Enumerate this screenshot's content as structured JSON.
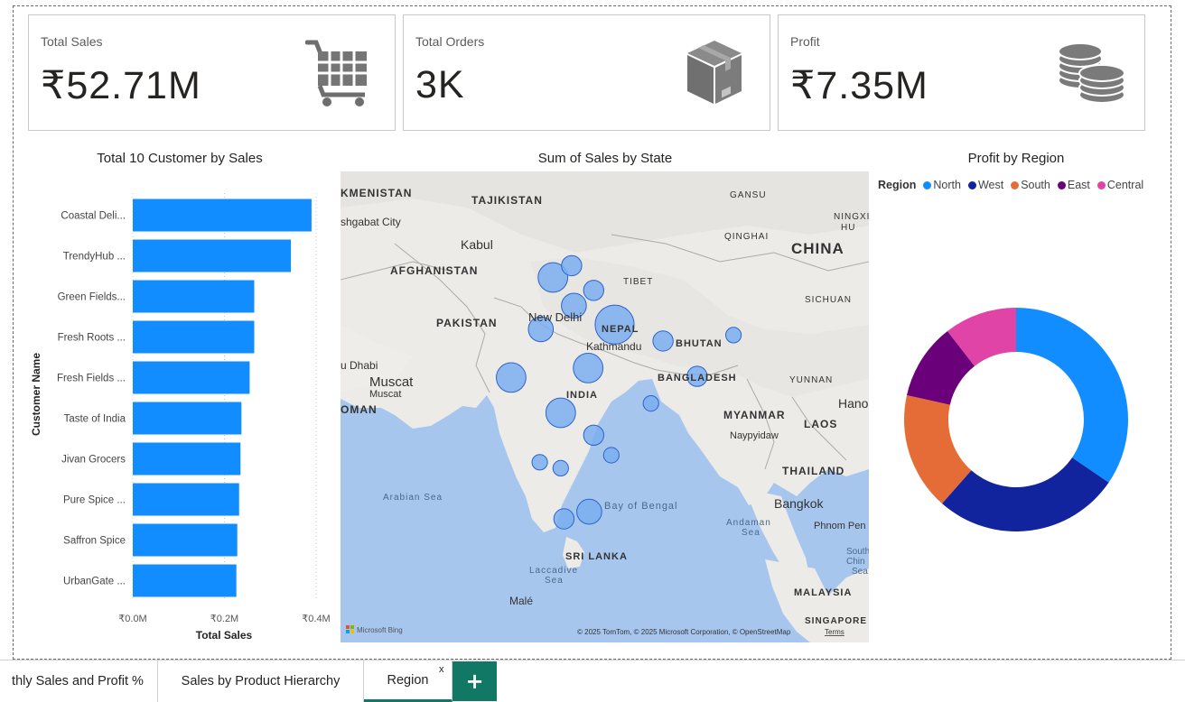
{
  "kpis": [
    {
      "label": "Total Sales",
      "value": "₹52.71M",
      "icon": "shopping-cart-icon"
    },
    {
      "label": "Total Orders",
      "value": "3K",
      "icon": "package-box-icon"
    },
    {
      "label": "Profit",
      "value": "₹7.35M",
      "icon": "coins-stack-icon"
    }
  ],
  "bar_chart": {
    "title": "Total 10 Customer by Sales",
    "ylabel": "Customer Name",
    "xlabel": "Total Sales",
    "x_ticks": [
      "₹0.0M",
      "₹0.2M",
      "₹0.4M"
    ]
  },
  "map": {
    "title": "Sum of Sales by State",
    "labels": {
      "turkmenistan": "KMENISTAN",
      "tajikistan": "TAJIKISTAN",
      "ashgabat": "shgabat City",
      "kabul": "Kabul",
      "afghanistan": "AFGHANISTAN",
      "pakistan": "PAKISTAN",
      "newdelhi": "New Delhi",
      "nepal": "NEPAL",
      "kathmandu": "Kathmandu",
      "bhutan": "BHUTAN",
      "bangladesh": "BANGLADESH",
      "india": "INDIA",
      "abudhabi": "u Dhabi",
      "muscat": "Muscat",
      "muscat2": "Muscat",
      "oman": "OMAN",
      "china": "CHINA",
      "gansu": "GANSU",
      "qinghai": "QINGHAI",
      "tibet": "TIBET",
      "sichuan": "SICHUAN",
      "ningxia": "NINGXI",
      "ningxia2": "HU",
      "yunnan": "YUNNAN",
      "myanmar": "MYANMAR",
      "naypyidaw": "Naypyidaw",
      "laos": "LAOS",
      "hanoi": "Hano",
      "thailand": "THAILAND",
      "bangkok": "Bangkok",
      "phnompenh": "Phnom Pen",
      "arabiansea": "Arabian Sea",
      "bayofbengal": "Bay of Bengal",
      "andamansea": "Andaman",
      "andamansea2": "Sea",
      "srilanka": "SRI LANKA",
      "laccadive": "Laccadive",
      "laccadive2": "Sea",
      "male": "Malé",
      "southchina": "South",
      "southchina2": "Chin",
      "southchina3": "Sea",
      "malaysia": "MALAYSIA",
      "singapore": "SINGAPORE",
      "bing": "Microsoft Bing",
      "copyright": "© 2025 TomTom, © 2025 Microsoft Corporation, © OpenStreetMap",
      "terms": "Terms"
    }
  },
  "donut": {
    "title": "Profit by Region",
    "legend_title": "Region"
  },
  "tabs": [
    {
      "label": "thly Sales and Profit %"
    },
    {
      "label": "Sales by Product Hierarchy"
    },
    {
      "label": "Region"
    }
  ],
  "close_tab": "x",
  "add_tab": "+",
  "chart_data": [
    {
      "type": "bar",
      "orientation": "horizontal",
      "title": "Total 10 Customer by Sales",
      "xlabel": "Total Sales",
      "ylabel": "Customer Name",
      "categories": [
        "Coastal Deli...",
        "TrendyHub ...",
        "Green Fields...",
        "Fresh Roots ...",
        "Fresh Fields ...",
        "Taste of India",
        "Jivan Grocers",
        "Pure Spice ...",
        "Saffron Spice",
        "UrbanGate ..."
      ],
      "values": [
        0.39,
        0.345,
        0.265,
        0.265,
        0.255,
        0.237,
        0.235,
        0.232,
        0.228,
        0.226
      ],
      "unit": "₹M",
      "xlim": [
        0,
        0.4
      ],
      "color": "#118DFF"
    },
    {
      "type": "pie",
      "subtype": "donut",
      "title": "Profit by Region",
      "categories": [
        "North",
        "West",
        "South",
        "East",
        "Central"
      ],
      "values": [
        34.5,
        27.0,
        17.0,
        11.0,
        10.5
      ],
      "colors": [
        "#118DFF",
        "#12239E",
        "#E66C37",
        "#6B007B",
        "#E044A7"
      ]
    },
    {
      "type": "scatter",
      "subtype": "bubble-map",
      "title": "Sum of Sales by State",
      "points": [
        {
          "lon": 75.3,
          "lat": 31.0,
          "size": 4
        },
        {
          "lon": 77.0,
          "lat": 32.0,
          "size": 2
        },
        {
          "lon": 77.2,
          "lat": 28.6,
          "size": 3
        },
        {
          "lon": 79.0,
          "lat": 29.9,
          "size": 2
        },
        {
          "lon": 74.2,
          "lat": 26.6,
          "size": 3
        },
        {
          "lon": 80.9,
          "lat": 27.0,
          "size": 6
        },
        {
          "lon": 85.3,
          "lat": 25.6,
          "size": 2
        },
        {
          "lon": 88.4,
          "lat": 22.6,
          "size": 2
        },
        {
          "lon": 91.7,
          "lat": 26.1,
          "size": 1
        },
        {
          "lon": 71.5,
          "lat": 22.5,
          "size": 4
        },
        {
          "lon": 78.5,
          "lat": 23.3,
          "size": 4
        },
        {
          "lon": 84.2,
          "lat": 20.3,
          "size": 1
        },
        {
          "lon": 76.0,
          "lat": 19.5,
          "size": 4
        },
        {
          "lon": 79.0,
          "lat": 17.6,
          "size": 2
        },
        {
          "lon": 80.6,
          "lat": 15.9,
          "size": 1
        },
        {
          "lon": 74.1,
          "lat": 15.3,
          "size": 1
        },
        {
          "lon": 76.0,
          "lat": 14.8,
          "size": 1
        },
        {
          "lon": 78.6,
          "lat": 11.1,
          "size": 3
        },
        {
          "lon": 76.3,
          "lat": 10.5,
          "size": 2
        }
      ]
    }
  ],
  "colors": {
    "accent": "#118DFF",
    "tab_accent": "#117865",
    "sea": "#A7C6EE",
    "land": "#EDEBE8"
  }
}
